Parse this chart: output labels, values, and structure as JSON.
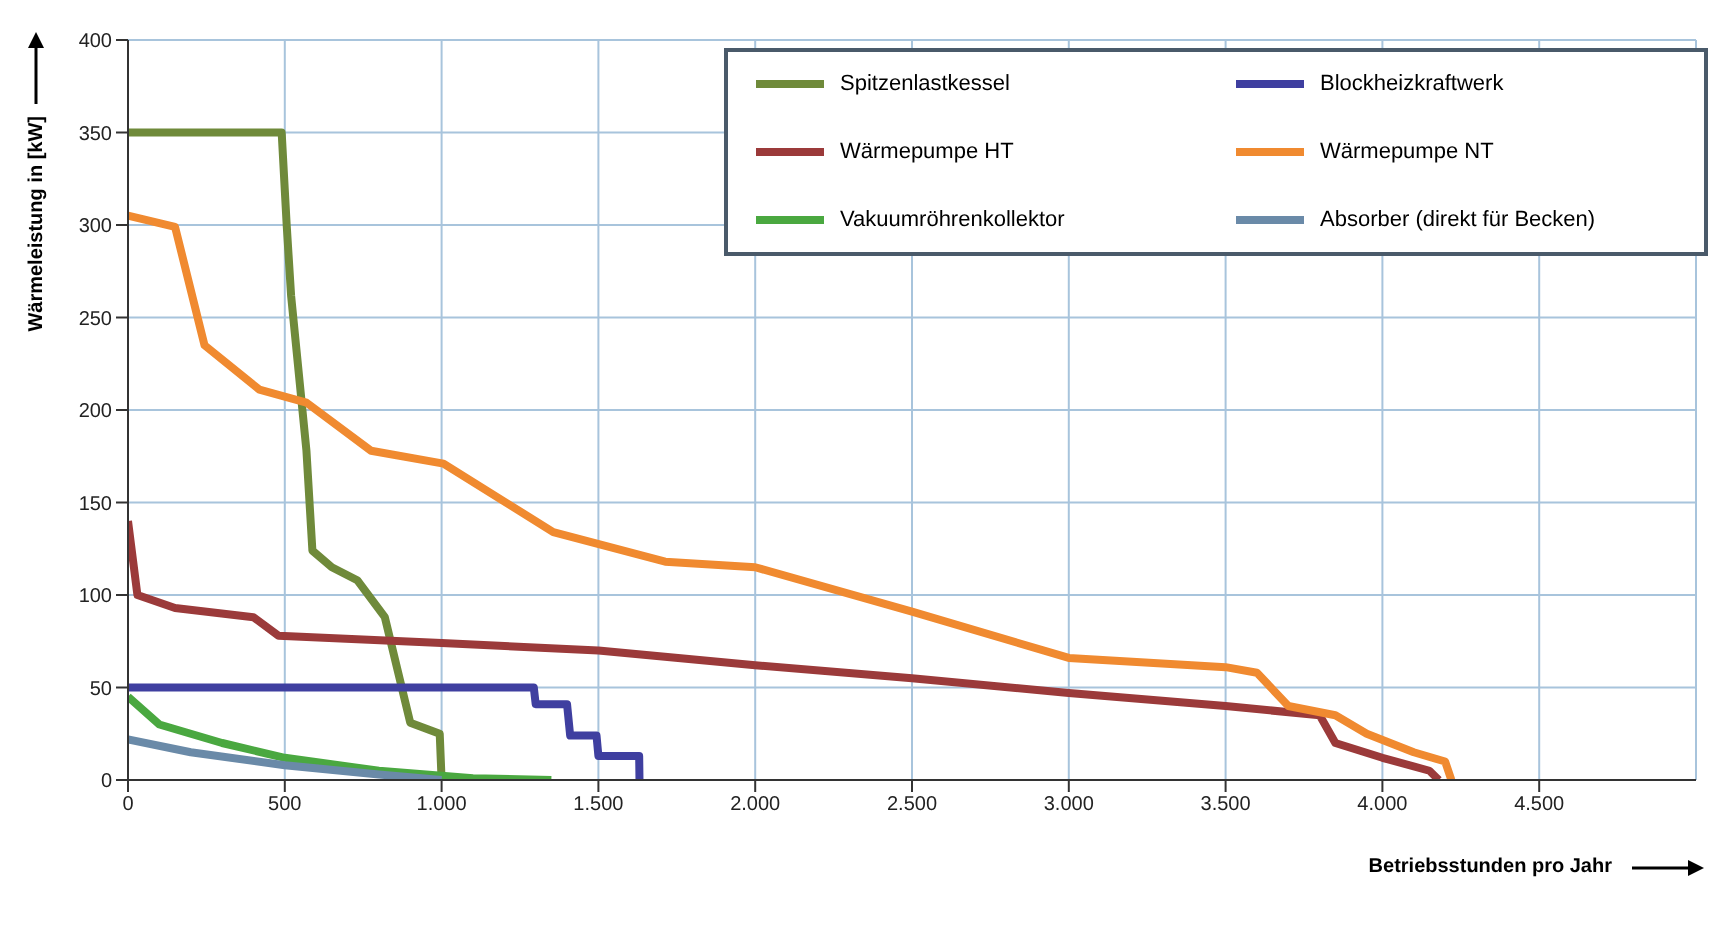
{
  "chart_data": {
    "type": "line",
    "xlabel": "Betriebsstunden pro Jahr",
    "ylabel": "Wärmeleistung in [kW]",
    "xlim": [
      0,
      5000
    ],
    "xticks": [
      0,
      500,
      {
        "value": 1000,
        "label": "1.000"
      },
      {
        "value": 1500,
        "label": "1.500"
      },
      {
        "value": 2000,
        "label": "2.000"
      },
      {
        "value": 2500,
        "label": "2.500"
      },
      {
        "value": 3000,
        "label": "3.000"
      },
      {
        "value": 3500,
        "label": "3.500"
      },
      {
        "value": 4000,
        "label": "4.000"
      },
      {
        "value": 4500,
        "label": "4.500"
      }
    ],
    "ylim": [
      0,
      400
    ],
    "yticks": [
      0,
      50,
      100,
      150,
      200,
      250,
      300,
      350,
      400
    ],
    "grid": true,
    "legend": "top right",
    "marker": "none",
    "line_style": "solid",
    "series": [
      {
        "name": "Spitzenlastkessel",
        "color": "#6f8a3a",
        "x": [
          0,
          490,
          506,
          520,
          569,
          588,
          650,
          731,
          819,
          900,
          994,
          1000
        ],
        "values": [
          350,
          350,
          300,
          262,
          178,
          124,
          115,
          108,
          88,
          31,
          25,
          0
        ]
      },
      {
        "name": "Blockheizkraftwerk",
        "color": "#3f3fa0",
        "x": [
          0,
          1294,
          1300,
          1400,
          1410,
          1494,
          1500,
          1630,
          1631
        ],
        "values": [
          50,
          50,
          41,
          41,
          24,
          24,
          13,
          13,
          0
        ]
      },
      {
        "name": "Wärmepumpe HT",
        "color": "#9b3a3a",
        "x": [
          0,
          30,
          150,
          400,
          480,
          1000,
          1500,
          2000,
          2500,
          3000,
          3500,
          3800,
          3850,
          4000,
          4150,
          4180
        ],
        "values": [
          140,
          100,
          93,
          88,
          78,
          74,
          70,
          62,
          55,
          47,
          40,
          35,
          20,
          12,
          5,
          0
        ]
      },
      {
        "name": "Wärmepumpe NT",
        "color": "#f08a30",
        "x": [
          0,
          150,
          244,
          419,
          569,
          775,
          1006,
          1356,
          1713,
          2000,
          2500,
          3000,
          3500,
          3600,
          3700,
          3850,
          3950,
          4100,
          4200,
          4220
        ],
        "values": [
          305,
          299,
          235,
          211,
          204,
          178,
          171,
          134,
          118,
          115,
          91,
          66,
          61,
          58,
          40,
          35,
          25,
          15,
          10,
          0
        ]
      },
      {
        "name": "Vakuumröhrenkollektor",
        "color": "#4aa840",
        "x": [
          0,
          100,
          300,
          500,
          800,
          1100,
          1350
        ],
        "values": [
          45,
          30,
          20,
          12,
          5,
          1,
          0
        ]
      },
      {
        "name": "Absorber (direkt für Becken)",
        "color": "#6a8aa8",
        "x": [
          0,
          200,
          500,
          800,
          1000
        ],
        "values": [
          22,
          15,
          8,
          3,
          0
        ]
      }
    ]
  }
}
